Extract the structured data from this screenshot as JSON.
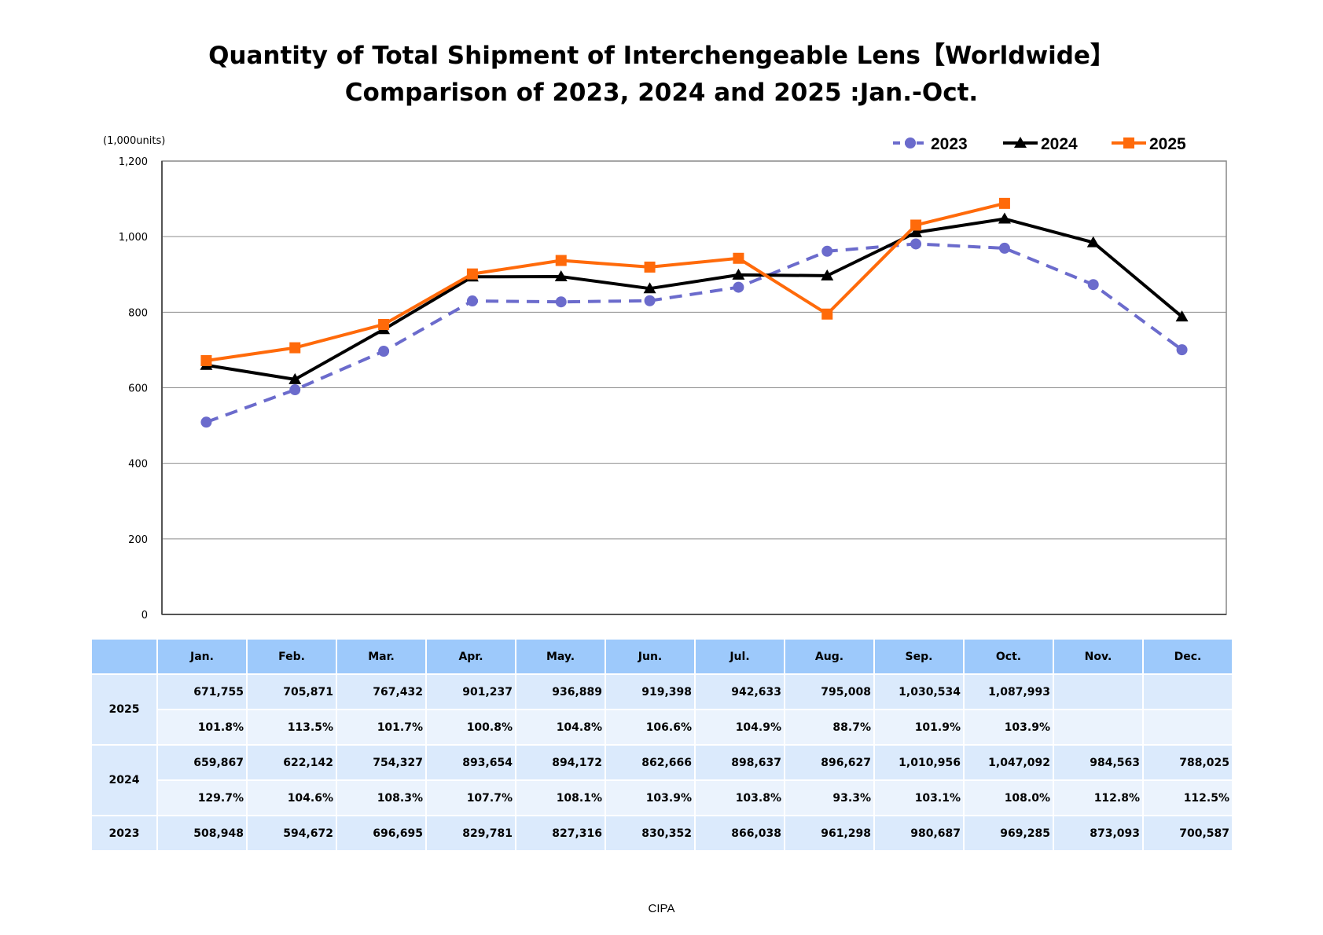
{
  "title_line1": "Quantity of Total Shipment of Interchengeable Lens【Worldwide】",
  "title_line2": "Comparison of 2023, 2024 and 2025 :Jan.-Oct.",
  "unit_label": "(1,000units)",
  "source": "CIPA",
  "colors": {
    "s2023": "#6b6bcc",
    "s2024": "#000000",
    "s2025": "#ff6a0a",
    "header_bg": "#9dc9fb",
    "cell_bg": "#dbeafc",
    "cell_bg_light": "#ebf3fd"
  },
  "chart_data": {
    "type": "line",
    "categories": [
      "Jan.",
      "Feb.",
      "Mar.",
      "Apr.",
      "May.",
      "Jun.",
      "Jul.",
      "Aug.",
      "Sep.",
      "Oct.",
      "Nov.",
      "Dec."
    ],
    "ylim": [
      0,
      1200
    ],
    "yticks": [
      "0",
      "200",
      "400",
      "600",
      "800",
      "1,000",
      "1,200"
    ],
    "grid": true,
    "legend_position": "top-right",
    "series": [
      {
        "name": "2023",
        "style": "dashed",
        "marker": "circle",
        "color": "#6b6bcc",
        "values": [
          508.948,
          594.672,
          696.695,
          829.781,
          827.316,
          830.352,
          866.038,
          961.298,
          980.687,
          969.285,
          873.093,
          700.587
        ]
      },
      {
        "name": "2024",
        "style": "solid",
        "marker": "triangle",
        "color": "#000000",
        "values": [
          659.867,
          622.142,
          754.327,
          893.654,
          894.172,
          862.666,
          898.637,
          896.627,
          1010.956,
          1047.092,
          984.563,
          788.025
        ]
      },
      {
        "name": "2025",
        "style": "solid",
        "marker": "square",
        "color": "#ff6a0a",
        "values": [
          671.755,
          705.871,
          767.432,
          901.237,
          936.889,
          919.398,
          942.633,
          795.008,
          1030.534,
          1087.993,
          null,
          null
        ]
      }
    ]
  },
  "table": {
    "months": [
      "Jan.",
      "Feb.",
      "Mar.",
      "Apr.",
      "May.",
      "Jun.",
      "Jul.",
      "Aug.",
      "Sep.",
      "Oct.",
      "Nov.",
      "Dec."
    ],
    "rows": [
      {
        "year": "2025",
        "values": [
          "671,755",
          "705,871",
          "767,432",
          "901,237",
          "936,889",
          "919,398",
          "942,633",
          "795,008",
          "1,030,534",
          "1,087,993",
          "",
          ""
        ],
        "percents": [
          "101.8%",
          "113.5%",
          "101.7%",
          "100.8%",
          "104.8%",
          "106.6%",
          "104.9%",
          "88.7%",
          "101.9%",
          "103.9%",
          "",
          ""
        ]
      },
      {
        "year": "2024",
        "values": [
          "659,867",
          "622,142",
          "754,327",
          "893,654",
          "894,172",
          "862,666",
          "898,637",
          "896,627",
          "1,010,956",
          "1,047,092",
          "984,563",
          "788,025"
        ],
        "percents": [
          "129.7%",
          "104.6%",
          "108.3%",
          "107.7%",
          "108.1%",
          "103.9%",
          "103.8%",
          "93.3%",
          "103.1%",
          "108.0%",
          "112.8%",
          "112.5%"
        ]
      },
      {
        "year": "2023",
        "values": [
          "508,948",
          "594,672",
          "696,695",
          "829,781",
          "827,316",
          "830,352",
          "866,038",
          "961,298",
          "980,687",
          "969,285",
          "873,093",
          "700,587"
        ]
      }
    ]
  }
}
